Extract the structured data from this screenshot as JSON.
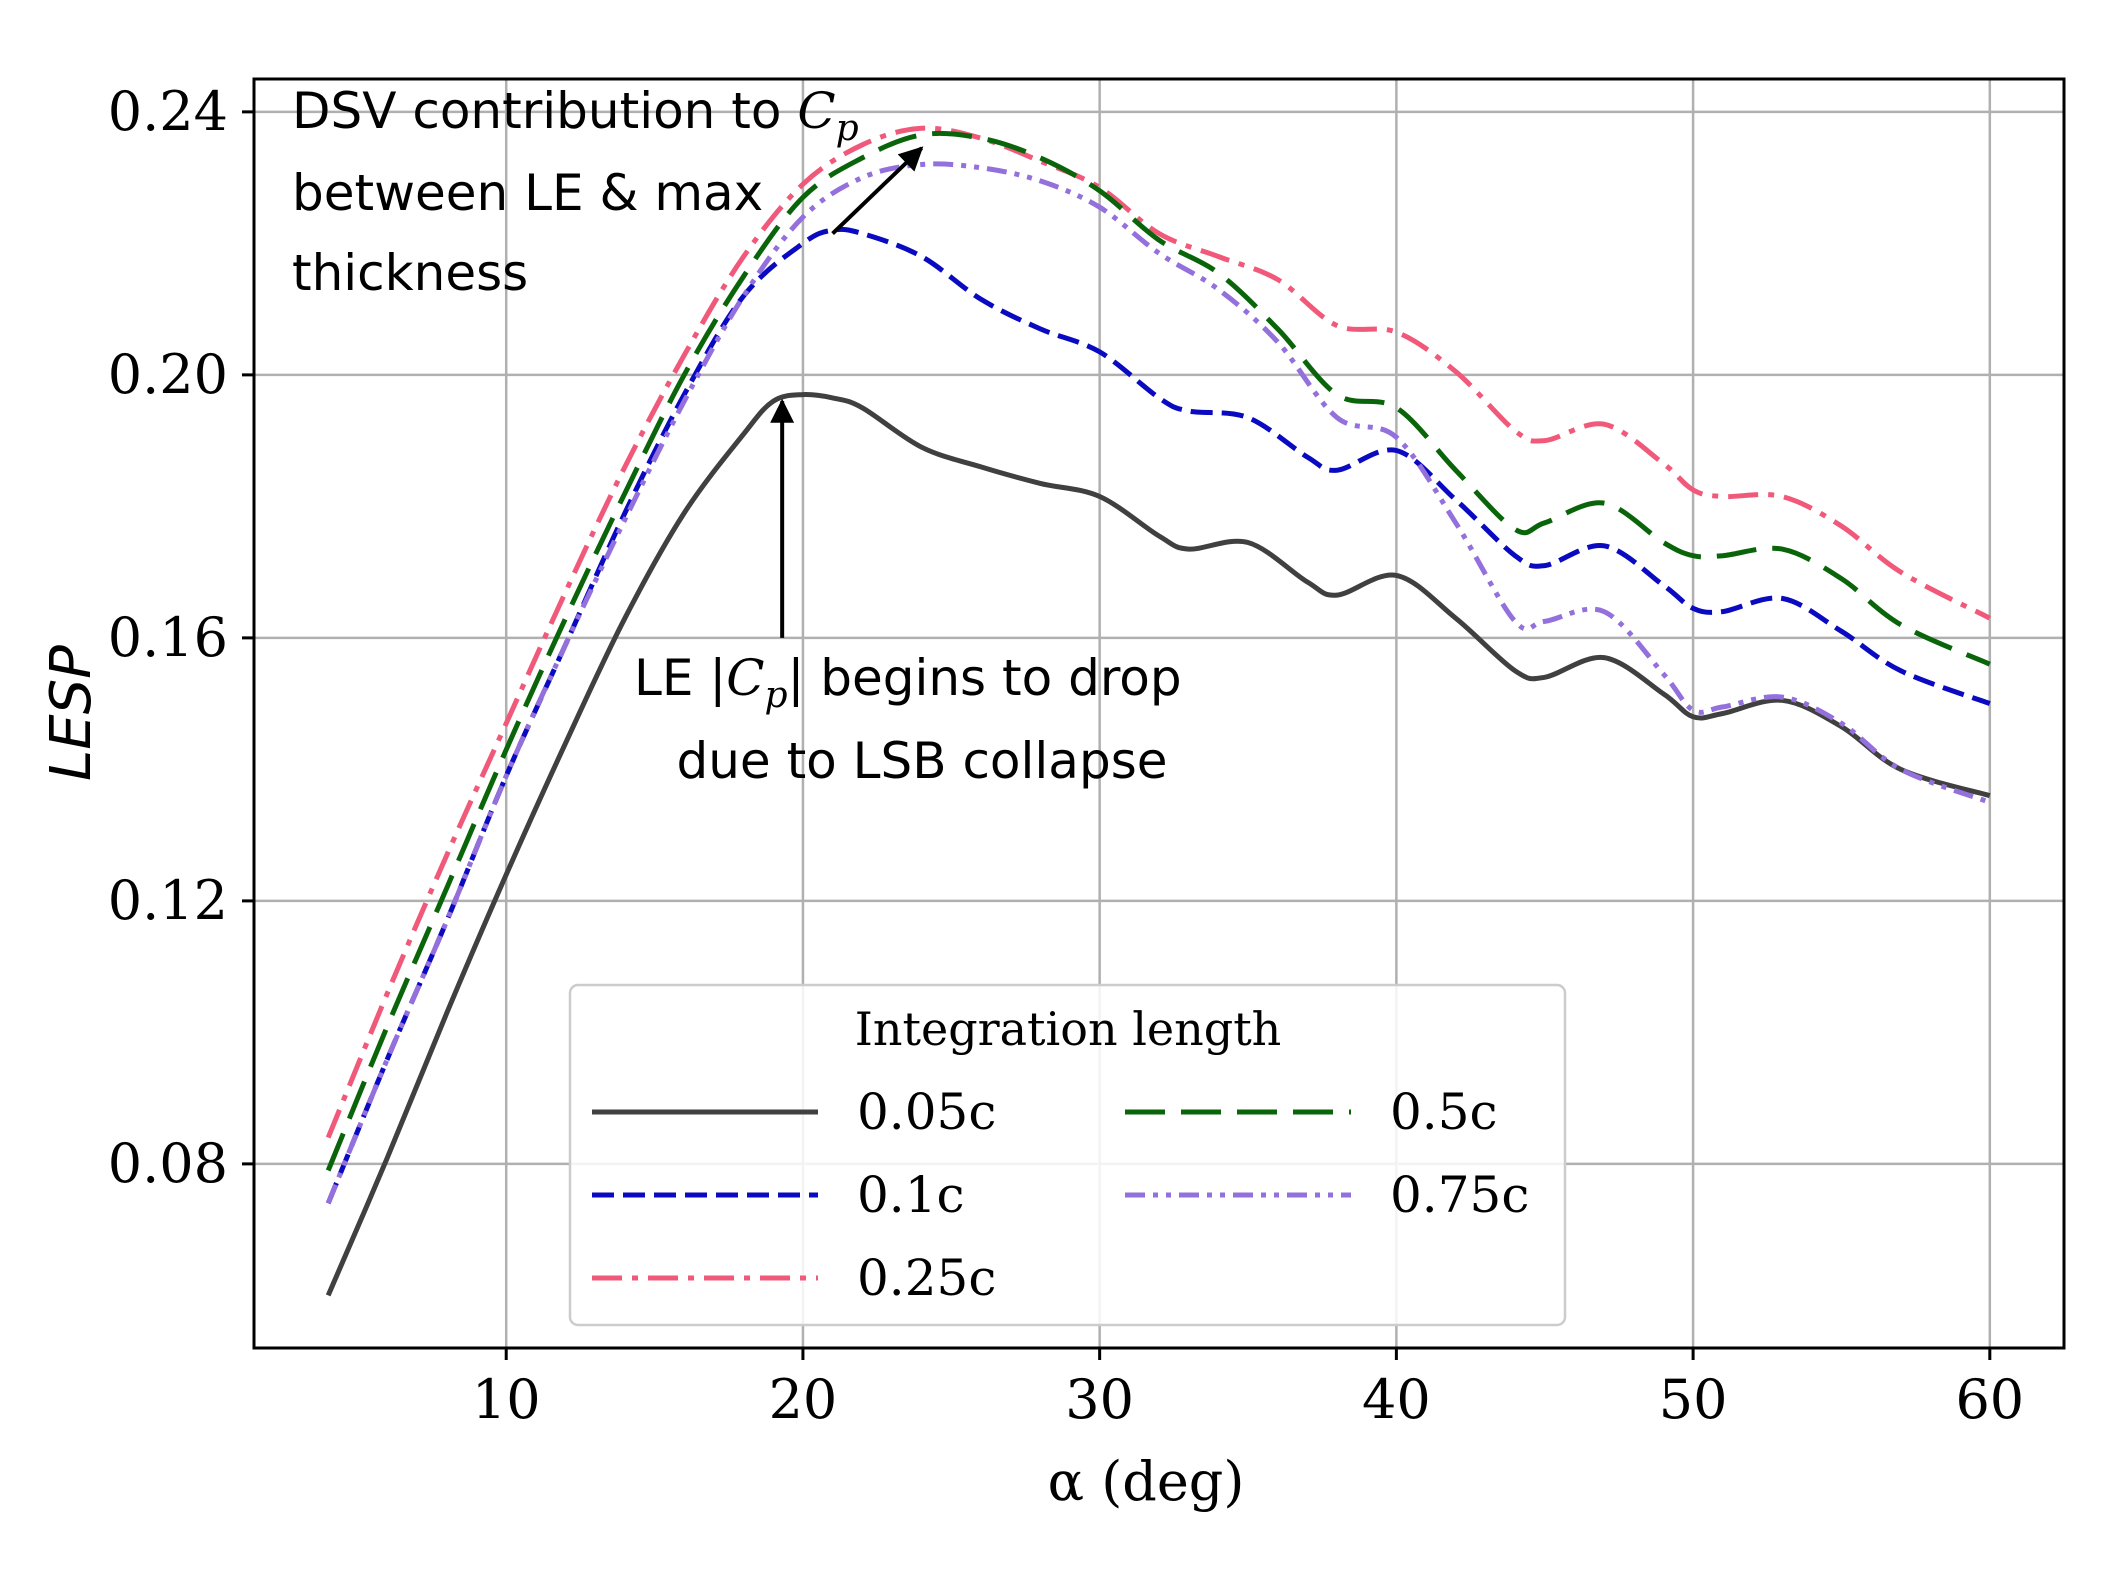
{
  "chart_data": {
    "type": "line",
    "xlabel": "α (deg)",
    "ylabel": "LESP",
    "xlim": [
      1.5,
      62.5
    ],
    "ylim": [
      0.052,
      0.245
    ],
    "xticks": [
      10,
      20,
      30,
      40,
      50,
      60
    ],
    "yticks": [
      0.08,
      0.12,
      0.16,
      0.2,
      0.24
    ],
    "xtick_labels": [
      "10",
      "20",
      "30",
      "40",
      "50",
      "60"
    ],
    "ytick_labels": [
      "0.08",
      "0.12",
      "0.16",
      "0.20",
      "0.24"
    ],
    "grid": true,
    "legend": {
      "title": "Integration length",
      "location": "lower-center",
      "columns": 2
    },
    "series": [
      {
        "name": "0.05c",
        "color": "#404040",
        "dash": "solid",
        "x": [
          4,
          6,
          8,
          10,
          12,
          14,
          16,
          18,
          19,
          20,
          21,
          22,
          24,
          26,
          28,
          30,
          32,
          33,
          35,
          37,
          38,
          40,
          42,
          44,
          45,
          47,
          49,
          50,
          51,
          53,
          55,
          57,
          60
        ],
        "y": [
          0.06,
          0.081,
          0.103,
          0.124,
          0.144,
          0.163,
          0.179,
          0.191,
          0.196,
          0.197,
          0.1965,
          0.195,
          0.189,
          0.186,
          0.1835,
          0.1815,
          0.1755,
          0.1735,
          0.1745,
          0.1685,
          0.1665,
          0.1695,
          0.163,
          0.155,
          0.154,
          0.157,
          0.1515,
          0.148,
          0.1485,
          0.1505,
          0.1465,
          0.14,
          0.136
        ]
      },
      {
        "name": "0.1c",
        "color": "#0a0ac0",
        "dash": "dashed",
        "x": [
          4,
          6,
          8,
          10,
          12,
          14,
          16,
          18,
          20,
          21,
          22,
          24,
          26,
          28,
          30,
          32,
          33,
          35,
          37,
          38,
          40,
          42,
          44,
          45,
          47,
          49,
          50,
          51,
          53,
          55,
          57,
          60
        ],
        "y": [
          0.074,
          0.096,
          0.117,
          0.139,
          0.159,
          0.179,
          0.197,
          0.212,
          0.22,
          0.222,
          0.2215,
          0.218,
          0.2115,
          0.207,
          0.2035,
          0.1965,
          0.1945,
          0.1935,
          0.1875,
          0.1855,
          0.1885,
          0.181,
          0.1725,
          0.171,
          0.174,
          0.168,
          0.1645,
          0.164,
          0.166,
          0.161,
          0.155,
          0.15
        ]
      },
      {
        "name": "0.25c",
        "color": "#f0597a",
        "dash": "dashdot",
        "x": [
          4,
          6,
          8,
          10,
          12,
          14,
          16,
          18,
          20,
          22,
          24,
          26,
          28,
          30,
          32,
          34,
          36,
          38,
          40,
          42,
          44,
          45,
          47,
          49,
          50,
          51,
          53,
          55,
          57,
          60
        ],
        "y": [
          0.084,
          0.106,
          0.127,
          0.147,
          0.167,
          0.186,
          0.203,
          0.218,
          0.229,
          0.235,
          0.2375,
          0.236,
          0.2325,
          0.2285,
          0.2215,
          0.218,
          0.2145,
          0.2075,
          0.2065,
          0.2005,
          0.1915,
          0.19,
          0.1925,
          0.1865,
          0.1825,
          0.1815,
          0.1815,
          0.177,
          0.17,
          0.163
        ]
      },
      {
        "name": "0.5c",
        "color": "#0a650a",
        "dash": "longdash",
        "x": [
          4,
          6,
          8,
          10,
          12,
          14,
          16,
          18,
          20,
          22,
          24,
          26,
          28,
          30,
          32,
          34,
          36,
          38,
          40,
          42,
          44,
          45,
          47,
          49,
          50,
          51,
          53,
          55,
          57,
          60
        ],
        "y": [
          0.079,
          0.101,
          0.122,
          0.143,
          0.163,
          0.182,
          0.2,
          0.215,
          0.227,
          0.233,
          0.2365,
          0.236,
          0.233,
          0.228,
          0.2205,
          0.2155,
          0.207,
          0.197,
          0.195,
          0.1855,
          0.1765,
          0.1775,
          0.1805,
          0.1745,
          0.1725,
          0.1725,
          0.1735,
          0.169,
          0.162,
          0.156
        ]
      },
      {
        "name": "0.75c",
        "color": "#9370db",
        "dash": "dashdotdot",
        "x": [
          4,
          6,
          8,
          10,
          12,
          14,
          16,
          18,
          20,
          22,
          24,
          26,
          28,
          30,
          32,
          34,
          36,
          38,
          40,
          42,
          44,
          45,
          47,
          49,
          50,
          51,
          53,
          55,
          57,
          60
        ],
        "y": [
          0.074,
          0.096,
          0.117,
          0.139,
          0.159,
          0.178,
          0.196,
          0.212,
          0.224,
          0.23,
          0.232,
          0.2315,
          0.2295,
          0.2255,
          0.2185,
          0.213,
          0.205,
          0.1935,
          0.1905,
          0.1775,
          0.1625,
          0.1625,
          0.164,
          0.1545,
          0.149,
          0.1495,
          0.151,
          0.147,
          0.14,
          0.135
        ]
      }
    ],
    "annotations": [
      {
        "lines": [
          "DSV contribution to C_p",
          "between LE & max",
          "thickness"
        ],
        "arrow_from": [
          21,
          0.2215
        ],
        "arrow_to": [
          24,
          0.2345
        ]
      },
      {
        "lines": [
          "LE |C_p| begins to drop",
          "due to LSB collapse"
        ],
        "arrow_from": [
          19.3,
          0.16
        ],
        "arrow_to": [
          19.3,
          0.196
        ]
      }
    ]
  }
}
